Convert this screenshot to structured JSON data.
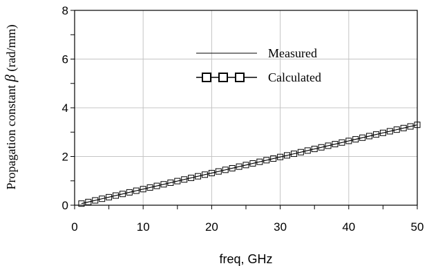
{
  "chart_data": {
    "type": "line",
    "xlabel": "freq, GHz",
    "ylabel_text": "Propagation constant ",
    "ylabel_symbol": "β",
    "ylabel_unit": " (rad/mm)",
    "xlim": [
      0,
      50
    ],
    "ylim": [
      0,
      8
    ],
    "x_ticks": [
      "0",
      "10",
      "20",
      "30",
      "40",
      "50"
    ],
    "y_ticks": [
      "0",
      "2",
      "4",
      "6",
      "8"
    ],
    "grid": true,
    "legend_position": "top-center",
    "series": [
      {
        "name": "Measured",
        "style": "thin-line",
        "x": [
          1,
          50
        ],
        "y": [
          0.066,
          3.3
        ]
      },
      {
        "name": "Calculated",
        "style": "line-square-markers",
        "x": [
          1,
          2,
          3,
          4,
          5,
          6,
          7,
          8,
          9,
          10,
          11,
          12,
          13,
          14,
          15,
          16,
          17,
          18,
          19,
          20,
          21,
          22,
          23,
          24,
          25,
          26,
          27,
          28,
          29,
          30,
          31,
          32,
          33,
          34,
          35,
          36,
          37,
          38,
          39,
          40,
          41,
          42,
          43,
          44,
          45,
          46,
          47,
          48,
          49,
          50
        ],
        "y": [
          0.066,
          0.132,
          0.198,
          0.264,
          0.33,
          0.396,
          0.462,
          0.528,
          0.594,
          0.66,
          0.726,
          0.792,
          0.858,
          0.924,
          0.99,
          1.056,
          1.122,
          1.188,
          1.254,
          1.32,
          1.386,
          1.452,
          1.518,
          1.584,
          1.65,
          1.716,
          1.782,
          1.848,
          1.914,
          1.98,
          2.046,
          2.112,
          2.178,
          2.244,
          2.31,
          2.376,
          2.442,
          2.508,
          2.574,
          2.64,
          2.706,
          2.772,
          2.838,
          2.904,
          2.97,
          3.036,
          3.102,
          3.168,
          3.234,
          3.3
        ]
      }
    ]
  }
}
